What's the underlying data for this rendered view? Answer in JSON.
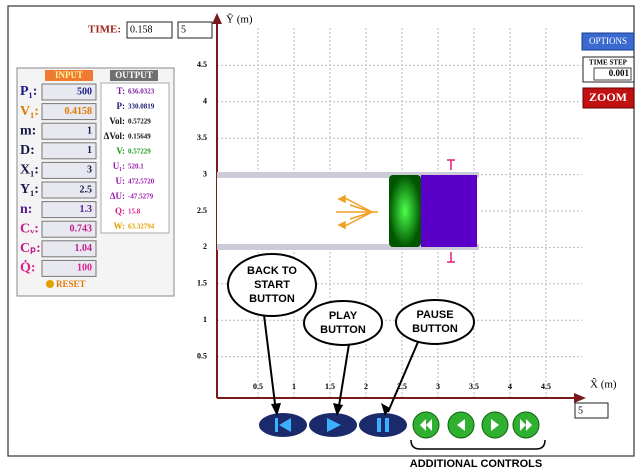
{
  "toolbar": {
    "time_label": "TIME:",
    "time_value": "0.158",
    "time_limit": "5"
  },
  "panel": {
    "input_header": "INPUT",
    "output_header": "OUTPUT",
    "inputs": [
      {
        "label": "P₁:",
        "value": "500",
        "color": "#1a1a8c"
      },
      {
        "label": "V₁:",
        "value": "0.4158",
        "color": "#e07a00"
      },
      {
        "label": "m:",
        "value": "1",
        "color": "#1a1a4a"
      },
      {
        "label": "D:",
        "value": "1",
        "color": "#1a1a4a"
      },
      {
        "label": "X₁:",
        "value": "3",
        "color": "#1a1a4a"
      },
      {
        "label": "Y₁:",
        "value": "2.5",
        "color": "#1a1a4a"
      },
      {
        "label": "n:",
        "value": "1.3",
        "color": "#5a1a8c"
      },
      {
        "label": "Cᵥ:",
        "value": "0.743",
        "color": "#c0208c"
      },
      {
        "label": "Cₚ:",
        "value": "1.04",
        "color": "#c0208c"
      },
      {
        "label": "Q̇:",
        "value": "100",
        "color": "#e0208c"
      }
    ],
    "reset": "RESET",
    "outputs": [
      {
        "label": "T:",
        "value": "636.0323",
        "color": "#7a1a9c"
      },
      {
        "label": "P:",
        "value": "330.0819",
        "color": "#1a1a6c"
      },
      {
        "label": "Vol:",
        "value": "0.57229",
        "color": "#111111"
      },
      {
        "label": "ΔVol:",
        "value": "0.15649",
        "color": "#111111"
      },
      {
        "label": "V:",
        "value": "0.57229",
        "color": "#1a9c1a"
      },
      {
        "label": "U₁:",
        "value": "520.1",
        "color": "#9c1ab0"
      },
      {
        "label": "U:",
        "value": "472.5720",
        "color": "#9c1ab0"
      },
      {
        "label": "ΔU:",
        "value": "-47.5279",
        "color": "#9c1ab0"
      },
      {
        "label": "Q:",
        "value": "15.8",
        "color": "#e0208c"
      },
      {
        "label": "W:",
        "value": "63.32794",
        "color": "#e0a000"
      }
    ]
  },
  "plot": {
    "y_label": "Ŷ (m)",
    "x_label": "X̂ (m)",
    "x_limit": "5",
    "xticks": [
      0.5,
      1,
      1.5,
      2,
      2.5,
      3,
      3.5,
      4,
      4.5
    ],
    "yticks": [
      0.5,
      1,
      1.5,
      2,
      2.5,
      3,
      3.5,
      4,
      4.5
    ]
  },
  "side": {
    "options": "OPTIONS",
    "time_step_label": "TIME STEP",
    "time_step": "0.001",
    "zoom": "ZOOM"
  },
  "callouts": {
    "back": [
      "BACK TO",
      "START",
      "BUTTON"
    ],
    "play": [
      "PLAY",
      "BUTTON"
    ],
    "pause": [
      "PAUSE",
      "BUTTON"
    ],
    "additional": "ADDITIONAL CONTROLS"
  }
}
